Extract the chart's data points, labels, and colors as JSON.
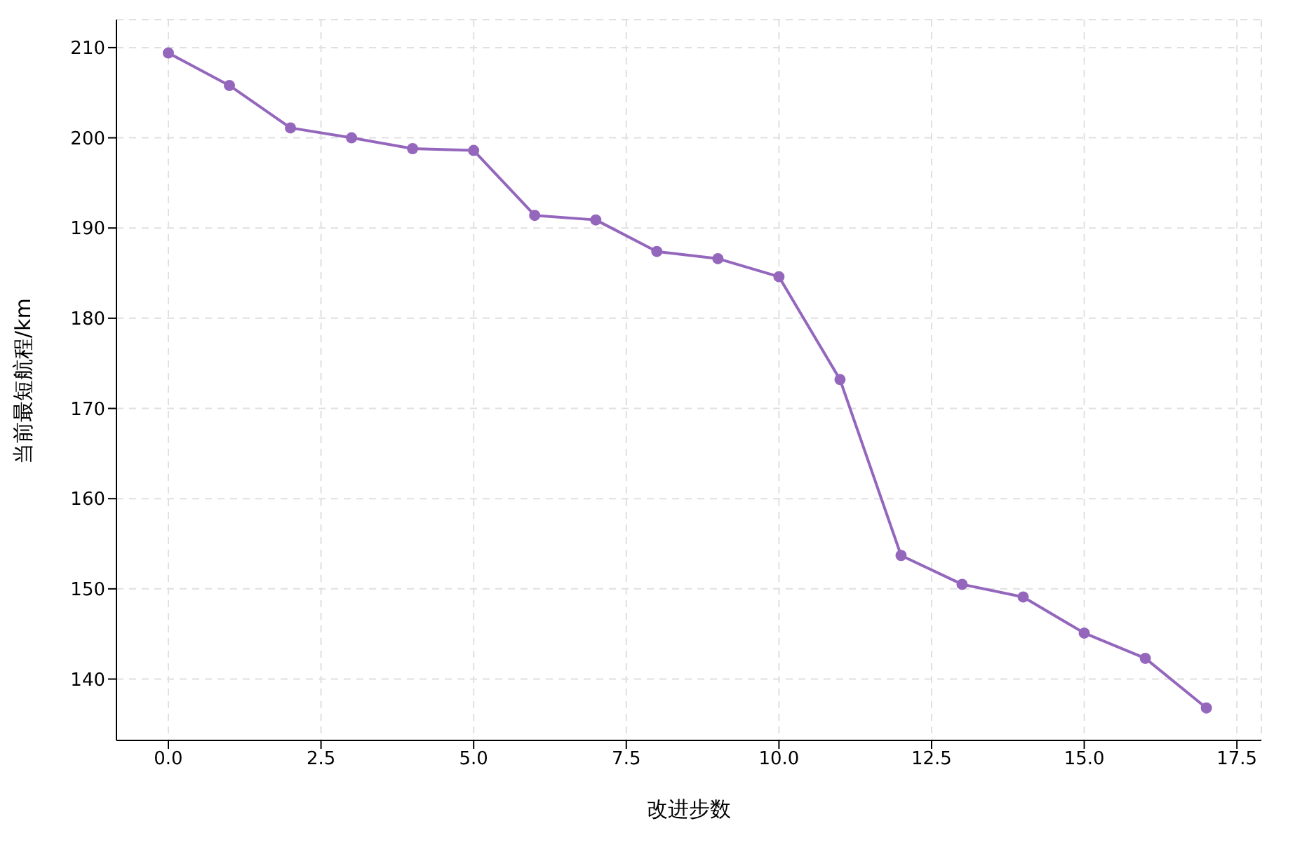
{
  "chart_data": {
    "type": "line",
    "xlabel": "改进步数",
    "ylabel": "当前最短航程/km",
    "x": [
      0,
      1,
      2,
      3,
      4,
      5,
      6,
      7,
      8,
      9,
      10,
      11,
      12,
      13,
      14,
      15,
      16,
      17
    ],
    "series": [
      {
        "color": "#9467bd",
        "values": [
          209.4,
          205.8,
          201.1,
          200.0,
          198.8,
          198.6,
          191.4,
          190.9,
          187.4,
          186.6,
          184.6,
          173.2,
          153.7,
          150.5,
          149.1,
          145.1,
          142.3,
          136.8
        ]
      }
    ],
    "xlim": [
      -0.85,
      17.9
    ],
    "xticks": [
      {
        "value": 0,
        "label": "0.0"
      },
      {
        "value": 2.5,
        "label": "2.5"
      },
      {
        "value": 5,
        "label": "5.0"
      },
      {
        "value": 7.5,
        "label": "7.5"
      },
      {
        "value": 10,
        "label": "10.0"
      },
      {
        "value": 12.5,
        "label": "12.5"
      },
      {
        "value": 15,
        "label": "15.0"
      },
      {
        "value": 17.5,
        "label": "17.5"
      }
    ],
    "ylim": [
      133.2,
      213.1
    ],
    "yticks": [
      140,
      150,
      160,
      170,
      180,
      190,
      200,
      210
    ],
    "grid": true,
    "marker": "circle",
    "line_style": "solid"
  }
}
